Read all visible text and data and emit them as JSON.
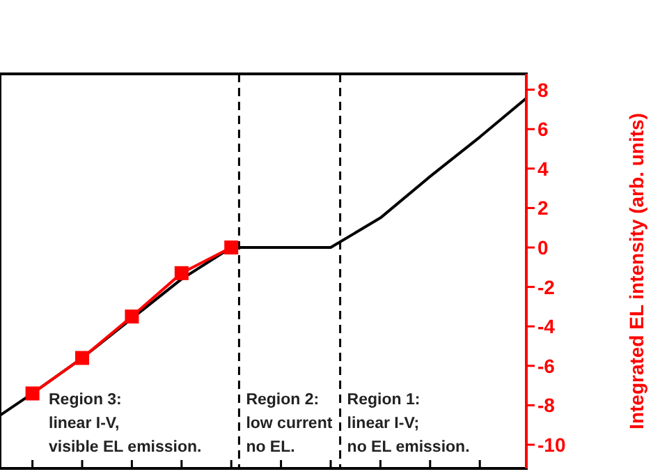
{
  "chart_data": {
    "type": "line",
    "ylabel": "Integrated EL intensity (arb. units)",
    "categories": [
      null,
      null,
      null,
      null,
      null,
      null,
      null,
      null,
      null,
      null,
      null,
      null
    ],
    "ylim": [
      -11.2,
      8.8
    ],
    "yticks": [
      -10,
      -8,
      -6,
      -4,
      -2,
      0,
      2,
      4,
      6,
      8
    ],
    "series": [
      {
        "color": "#000000",
        "marker": "none",
        "values": [
          -9.1,
          -7.4,
          -5.6,
          -3.6,
          -1.6,
          0,
          0,
          0,
          1.5,
          3.6,
          5.6,
          7.7
        ]
      },
      {
        "color": "#ff0000",
        "marker": "square",
        "values": [
          null,
          -7.4,
          -5.6,
          -3.5,
          -1.3,
          0,
          null,
          null,
          null,
          null,
          null,
          null
        ]
      }
    ],
    "annotations": [
      "Region 3:\nlinear I-V,\nvisible EL emission.",
      "Region 2:\nlow current\nno EL.",
      "Region 1:\nlinear I-V;\nno EL emission."
    ],
    "grid": false
  }
}
